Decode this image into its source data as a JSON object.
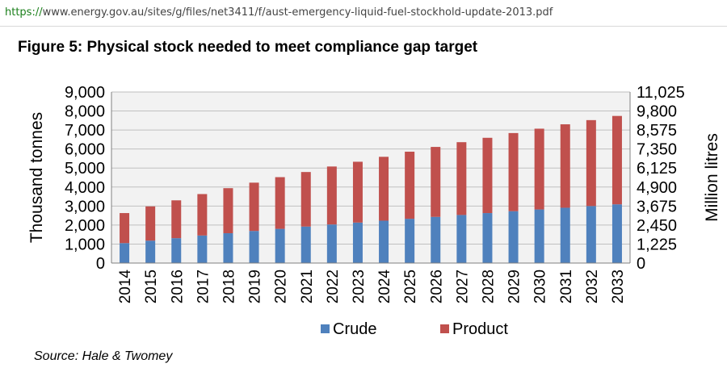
{
  "browser": {
    "url_scheme": "https://",
    "url_rest": "www.energy.gov.au/sites/g/files/net3411/f/aust-emergency-liquid-fuel-stockhold-update-2013.pdf"
  },
  "figure": {
    "title": "Figure 5: Physical stock needed to meet compliance gap target",
    "source": "Source: Hale & Twomey"
  },
  "colors": {
    "crude": "#4f81bd",
    "product": "#c0504d",
    "plot_bg": "#f2f2f2",
    "grid": "#bfbfbf"
  },
  "chart_data": {
    "type": "bar",
    "stacked": true,
    "categories": [
      "2014",
      "2015",
      "2016",
      "2017",
      "2018",
      "2019",
      "2020",
      "2021",
      "2022",
      "2023",
      "2024",
      "2025",
      "2026",
      "2027",
      "2028",
      "2029",
      "2030",
      "2031",
      "2032",
      "2033"
    ],
    "series": [
      {
        "name": "Crude",
        "values": [
          1050,
          1180,
          1310,
          1450,
          1570,
          1690,
          1800,
          1920,
          2030,
          2130,
          2230,
          2330,
          2430,
          2530,
          2630,
          2730,
          2820,
          2910,
          3000,
          3090
        ]
      },
      {
        "name": "Product",
        "values": [
          1580,
          1800,
          1990,
          2180,
          2370,
          2540,
          2720,
          2870,
          3050,
          3200,
          3360,
          3530,
          3680,
          3830,
          3960,
          4110,
          4250,
          4390,
          4520,
          4650
        ]
      }
    ],
    "ylabel": "Thousand tonnes",
    "ylim": [
      0,
      9000
    ],
    "yticks": [
      "0",
      "1,000",
      "2,000",
      "3,000",
      "4,000",
      "5,000",
      "6,000",
      "7,000",
      "8,000",
      "9,000"
    ],
    "y2label": "Million litres",
    "y2ticks": [
      "0",
      "1,225",
      "2,450",
      "3,675",
      "4,900",
      "6,125",
      "7,350",
      "8,575",
      "9,800",
      "11,025"
    ],
    "grid": true,
    "legend_position": "bottom"
  }
}
